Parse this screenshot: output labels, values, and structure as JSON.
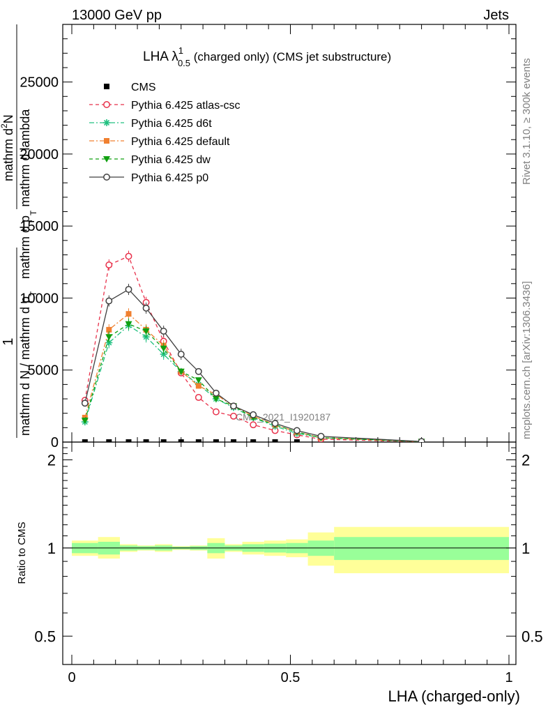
{
  "header": {
    "left": "13000 GeV pp",
    "right": "Jets"
  },
  "plot_title": {
    "main": "LHA λ",
    "sup": "1",
    "sub": "0.5",
    "rest": " (charged only) (CMS jet substructure)"
  },
  "y_label": {
    "numerator": "1",
    "denominator": "mathrm d N / mathrm d p",
    "denominator_sub": "T",
    "right_part": "mathrm d",
    "right_part_sup": "2",
    "right_part_rest": "N",
    "right_denom": "mathrm d p",
    "right_denom_sub": "T",
    "right_denom_rest": " mathrm d lambda"
  },
  "x_label": "LHA (charged-only)",
  "ratio_ylabel": "Ratio to CMS",
  "side_text_top": "Rivet 3.1.10, ≥ 300k events",
  "side_text_bottom": "mcplots.cern.ch [arXiv:1306.3436]",
  "watermark": "CMS_2021_I1920187",
  "colors": {
    "cms": "#000000",
    "atlas_csc": "#e8304a",
    "d6t": "#20c080",
    "default": "#f08030",
    "dw": "#10a010",
    "p0": "#404040",
    "band_inner": "#99ff99",
    "band_outer": "#ffff99"
  },
  "chart_data": [
    {
      "type": "line",
      "title": "LHA λ^1_0.5 (charged only) (CMS jet substructure)",
      "xlabel": "LHA (charged-only)",
      "ylabel": "1 / mathrm d N / mathrm d p_T  mathrm d^2N / mathrm d p_T mathrm d lambda",
      "xlim": [
        0,
        1
      ],
      "ylim": [
        0,
        29000
      ],
      "yticks": [
        0,
        5000,
        10000,
        15000,
        20000,
        25000
      ],
      "ytick_labels": [
        "0",
        "5000",
        "10000",
        "15000",
        "20000",
        "25000"
      ],
      "legend_position": "top-left",
      "series": [
        {
          "name": "CMS",
          "marker": "square",
          "x": [
            0.03,
            0.085,
            0.13,
            0.17,
            0.21,
            0.25,
            0.29,
            0.33,
            0.37,
            0.415,
            0.465,
            0.515
          ],
          "y": [
            0,
            0,
            0,
            0,
            0,
            0,
            0,
            0,
            0,
            0,
            0,
            0
          ]
        },
        {
          "name": "Pythia 6.425 atlas-csc",
          "marker": "open-circle",
          "dash": "dashed",
          "x": [
            0.03,
            0.085,
            0.13,
            0.17,
            0.21,
            0.25,
            0.29,
            0.33,
            0.37,
            0.415,
            0.465,
            0.515,
            0.57,
            0.8
          ],
          "y": [
            2900,
            12300,
            12900,
            9700,
            7000,
            4800,
            3100,
            2100,
            1800,
            1200,
            800,
            500,
            200,
            20
          ]
        },
        {
          "name": "Pythia 6.425 d6t",
          "marker": "star",
          "dash": "dash-dot",
          "x": [
            0.03,
            0.085,
            0.13,
            0.17,
            0.21,
            0.25,
            0.29,
            0.33,
            0.37,
            0.415,
            0.465,
            0.515,
            0.57,
            0.8
          ],
          "y": [
            1400,
            6900,
            8100,
            7300,
            6100,
            4900,
            4000,
            3000,
            2400,
            1700,
            1100,
            600,
            300,
            30
          ]
        },
        {
          "name": "Pythia 6.425 default",
          "marker": "filled-square",
          "dash": "dash-dot",
          "x": [
            0.03,
            0.085,
            0.13,
            0.17,
            0.21,
            0.25,
            0.29,
            0.33,
            0.37,
            0.415,
            0.465,
            0.515,
            0.57,
            0.8
          ],
          "y": [
            1700,
            7800,
            8900,
            7800,
            6700,
            4900,
            3900,
            3300,
            2500,
            1800,
            1200,
            700,
            300,
            30
          ]
        },
        {
          "name": "Pythia 6.425 dw",
          "marker": "filled-triangle-down",
          "dash": "dashed",
          "x": [
            0.03,
            0.085,
            0.13,
            0.17,
            0.21,
            0.25,
            0.29,
            0.33,
            0.37,
            0.415,
            0.465,
            0.515,
            0.57,
            0.8
          ],
          "y": [
            1500,
            7300,
            8200,
            7700,
            6500,
            4900,
            4300,
            3000,
            2500,
            1700,
            1200,
            700,
            300,
            30
          ]
        },
        {
          "name": "Pythia 6.425 p0",
          "marker": "open-circle",
          "dash": "solid",
          "x": [
            0.03,
            0.085,
            0.13,
            0.17,
            0.21,
            0.25,
            0.29,
            0.33,
            0.37,
            0.415,
            0.465,
            0.515,
            0.57,
            0.8
          ],
          "y": [
            2700,
            9800,
            10600,
            9300,
            7700,
            6100,
            4900,
            3400,
            2500,
            1900,
            1300,
            800,
            400,
            40
          ]
        }
      ]
    },
    {
      "type": "area",
      "ylabel": "Ratio to CMS",
      "xlabel": "LHA (charged-only)",
      "xlim": [
        0,
        1
      ],
      "ylim": [
        0.4,
        2.3
      ],
      "log_scale": true,
      "yticks": [
        0.5,
        1,
        2
      ],
      "ytick_labels": [
        "0.5",
        "1",
        "2"
      ],
      "xticks": [
        0,
        0.5,
        1
      ],
      "xtick_labels": [
        "0",
        "0.5",
        "1"
      ],
      "series": [
        {
          "name": "CMS",
          "bins": [
            {
              "x": [
                0.0,
                0.06
              ],
              "inner": [
                0.96,
                1.04
              ],
              "outer": [
                0.94,
                1.06
              ]
            },
            {
              "x": [
                0.06,
                0.11
              ],
              "inner": [
                0.95,
                1.05
              ],
              "outer": [
                0.92,
                1.09
              ]
            },
            {
              "x": [
                0.11,
                0.15
              ],
              "inner": [
                0.98,
                1.02
              ],
              "outer": [
                0.97,
                1.03
              ]
            },
            {
              "x": [
                0.15,
                0.19
              ],
              "inner": [
                0.985,
                1.015
              ],
              "outer": [
                0.98,
                1.02
              ]
            },
            {
              "x": [
                0.19,
                0.23
              ],
              "inner": [
                0.98,
                1.02
              ],
              "outer": [
                0.97,
                1.03
              ]
            },
            {
              "x": [
                0.23,
                0.27
              ],
              "inner": [
                0.99,
                1.01
              ],
              "outer": [
                0.985,
                1.015
              ]
            },
            {
              "x": [
                0.27,
                0.31
              ],
              "inner": [
                0.985,
                1.015
              ],
              "outer": [
                0.98,
                1.02
              ]
            },
            {
              "x": [
                0.31,
                0.35
              ],
              "inner": [
                0.96,
                1.04
              ],
              "outer": [
                0.92,
                1.08
              ]
            },
            {
              "x": [
                0.35,
                0.39
              ],
              "inner": [
                0.98,
                1.02
              ],
              "outer": [
                0.97,
                1.03
              ]
            },
            {
              "x": [
                0.39,
                0.44
              ],
              "inner": [
                0.97,
                1.03
              ],
              "outer": [
                0.95,
                1.05
              ]
            },
            {
              "x": [
                0.44,
                0.49
              ],
              "inner": [
                0.965,
                1.035
              ],
              "outer": [
                0.94,
                1.06
              ]
            },
            {
              "x": [
                0.49,
                0.54
              ],
              "inner": [
                0.96,
                1.04
              ],
              "outer": [
                0.93,
                1.07
              ]
            },
            {
              "x": [
                0.54,
                0.6
              ],
              "inner": [
                0.94,
                1.06
              ],
              "outer": [
                0.87,
                1.13
              ]
            },
            {
              "x": [
                0.6,
                1.0
              ],
              "inner": [
                0.91,
                1.09
              ],
              "outer": [
                0.82,
                1.18
              ]
            }
          ]
        }
      ]
    }
  ]
}
